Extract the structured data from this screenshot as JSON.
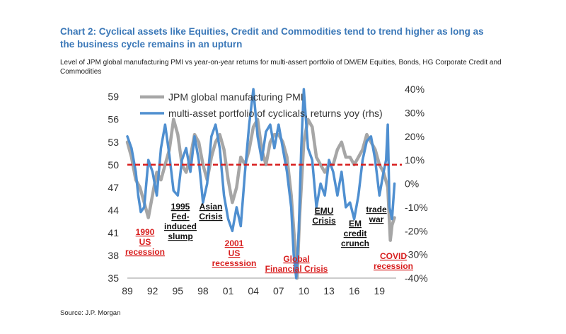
{
  "header": {
    "title": "Chart 2: Cyclical assets like Equities, Credit and Commodities tend to trend higher as long as the business cycle remains in an upturn",
    "subtitle": "Level of JPM global manufacturing PMI vs year-on-year returns for multi-assert portfolio of DM/EM Equities, Bonds, HG Corporate Credit and Commodities"
  },
  "footer": {
    "source": "Source: J.P. Morgan"
  },
  "chart_data": {
    "type": "line",
    "x_tick_labels": [
      "89",
      "92",
      "95",
      "98",
      "01",
      "04",
      "07",
      "10",
      "13",
      "16",
      "19"
    ],
    "x_ticks": [
      1989,
      1992,
      1995,
      1998,
      2001,
      2004,
      2007,
      2010,
      2013,
      2016,
      2019
    ],
    "xlim": [
      1989,
      2021
    ],
    "y_left": {
      "lim": [
        35,
        60
      ],
      "ticks": [
        35,
        38,
        41,
        44,
        47,
        50,
        53,
        56,
        59
      ]
    },
    "y_right": {
      "lim": [
        -40,
        40
      ],
      "ticks": [
        -40,
        -30,
        -20,
        -10,
        0,
        10,
        20,
        30,
        40
      ],
      "tick_labels": [
        "-40%",
        "-30%",
        "-20%",
        "-10%",
        "0%",
        "10%",
        "20%",
        "30%",
        "40%"
      ]
    },
    "reference_line": {
      "y": 50,
      "axis": "left",
      "color": "#d81e1e",
      "style": "dashed"
    },
    "legend": {
      "placement": "top-left",
      "entries": [
        "JPM global manufacturing PMI",
        "multi-asset portfolio of cyclicals, returns yoy (rhs)"
      ]
    },
    "series": [
      {
        "name": "JPM global manufacturing PMI",
        "axis": "left",
        "color": "#a6a6a6",
        "x": [
          1989.0,
          1989.5,
          1990.0,
          1990.5,
          1991.0,
          1991.5,
          1992.0,
          1992.5,
          1993.0,
          1993.5,
          1994.0,
          1994.5,
          1995.0,
          1995.5,
          1996.0,
          1996.5,
          1997.0,
          1997.5,
          1998.0,
          1998.5,
          1999.0,
          1999.5,
          2000.0,
          2000.5,
          2001.0,
          2001.5,
          2002.0,
          2002.5,
          2003.0,
          2003.5,
          2004.0,
          2004.5,
          2005.0,
          2005.5,
          2006.0,
          2006.5,
          2007.0,
          2007.5,
          2008.0,
          2008.5,
          2008.9,
          2009.2,
          2009.5,
          2010.0,
          2010.5,
          2011.0,
          2011.5,
          2012.0,
          2012.5,
          2013.0,
          2013.5,
          2014.0,
          2014.5,
          2015.0,
          2015.5,
          2016.0,
          2016.5,
          2017.0,
          2017.5,
          2018.0,
          2018.5,
          2019.0,
          2019.5,
          2020.0,
          2020.3,
          2020.5,
          2020.8
        ],
        "values": [
          53,
          51,
          48,
          47,
          45,
          43,
          46,
          49,
          48,
          50,
          52,
          56,
          54,
          50,
          49,
          51,
          54,
          53,
          50,
          48,
          51,
          53,
          54,
          52,
          48,
          45,
          47,
          51,
          50,
          52,
          55,
          56,
          52,
          50,
          53,
          54,
          54,
          53,
          51,
          46,
          40,
          35,
          43,
          53,
          56,
          55,
          51,
          50,
          49,
          50,
          50,
          52,
          53,
          51,
          51,
          50,
          51,
          52,
          54,
          53,
          52,
          50,
          49,
          47,
          40,
          42,
          43
        ]
      },
      {
        "name": "multi-asset portfolio of cyclicals, returns yoy (rhs)",
        "axis": "right",
        "color": "#4f8fd0",
        "x": [
          1989.0,
          1989.5,
          1990.0,
          1990.3,
          1990.6,
          1991.0,
          1991.5,
          1992.0,
          1992.5,
          1993.0,
          1993.5,
          1994.0,
          1994.5,
          1995.0,
          1995.5,
          1996.0,
          1996.5,
          1997.0,
          1997.5,
          1998.0,
          1998.5,
          1999.0,
          1999.5,
          2000.0,
          2000.5,
          2001.0,
          2001.5,
          2002.0,
          2002.5,
          2003.0,
          2003.5,
          2004.0,
          2004.5,
          2005.0,
          2005.5,
          2006.0,
          2006.5,
          2007.0,
          2007.5,
          2008.0,
          2008.5,
          2008.8,
          2009.1,
          2009.4,
          2009.7,
          2010.0,
          2010.5,
          2011.0,
          2011.5,
          2012.0,
          2012.5,
          2013.0,
          2013.5,
          2014.0,
          2014.5,
          2015.0,
          2015.5,
          2016.0,
          2016.5,
          2017.0,
          2017.5,
          2018.0,
          2018.5,
          2019.0,
          2019.5,
          2019.8,
          2020.0,
          2020.2,
          2020.5,
          2020.8
        ],
        "values": [
          20,
          15,
          5,
          -5,
          -12,
          -10,
          10,
          5,
          -5,
          15,
          25,
          12,
          -3,
          -5,
          10,
          15,
          5,
          20,
          10,
          -8,
          0,
          20,
          25,
          15,
          -5,
          -15,
          -20,
          -10,
          -18,
          5,
          25,
          40,
          20,
          10,
          22,
          25,
          15,
          25,
          15,
          5,
          -10,
          -30,
          -40,
          -20,
          15,
          40,
          15,
          10,
          -10,
          0,
          -5,
          10,
          5,
          -5,
          5,
          -10,
          -8,
          -15,
          -5,
          10,
          18,
          20,
          10,
          -5,
          5,
          10,
          25,
          -10,
          -15,
          0
        ]
      }
    ],
    "annotations": [
      {
        "text": [
          "1990",
          "US",
          "recession"
        ],
        "color": "#d81e1e"
      },
      {
        "text": [
          "1995",
          "Fed-",
          "induced",
          "slump"
        ],
        "color": "#111111"
      },
      {
        "text": [
          "Asian",
          "Crisis"
        ],
        "color": "#111111"
      },
      {
        "text": [
          "2001",
          "US",
          "recesssion"
        ],
        "color": "#d81e1e"
      },
      {
        "text": [
          "Global",
          "Financial Crisis"
        ],
        "color": "#d81e1e"
      },
      {
        "text": [
          "EMU",
          "Crisis"
        ],
        "color": "#111111"
      },
      {
        "text": [
          "EM",
          "credit",
          "crunch"
        ],
        "color": "#111111"
      },
      {
        "text": [
          "trade",
          "war"
        ],
        "color": "#111111"
      },
      {
        "text": [
          "COVID",
          "recession"
        ],
        "color": "#d81e1e"
      }
    ]
  }
}
